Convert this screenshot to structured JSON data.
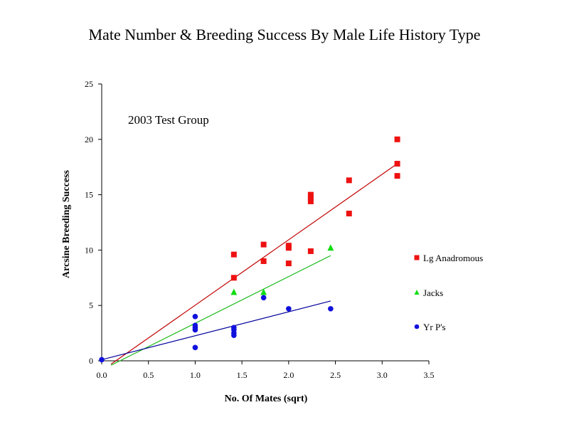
{
  "chart_data": {
    "type": "scatter",
    "title": "Mate Number & Breeding Success By Male Life History Type",
    "xlabel": "No. Of Mates (sqrt)",
    "ylabel": "Arcsine Breeding Success",
    "annotation": "2003 Test Group",
    "xlim": [
      0,
      3.5
    ],
    "ylim": [
      0,
      25
    ],
    "xticks": [
      "0.0",
      "0.5",
      "1.0",
      "1.5",
      "2.0",
      "2.5",
      "3.0",
      "3.5"
    ],
    "yticks": [
      "0",
      "5",
      "10",
      "15",
      "20",
      "25"
    ],
    "grid": false,
    "legend_position": "right",
    "series": [
      {
        "name": "Lg Anadromous",
        "marker": "square",
        "color": "#ee1111",
        "line_color": "#c00000",
        "points": [
          [
            1.414,
            7.5
          ],
          [
            1.414,
            9.6
          ],
          [
            1.732,
            9.0
          ],
          [
            1.732,
            10.5
          ],
          [
            2.0,
            8.8
          ],
          [
            2.0,
            10.2
          ],
          [
            2.0,
            10.4
          ],
          [
            2.236,
            9.9
          ],
          [
            2.236,
            14.4
          ],
          [
            2.236,
            14.7
          ],
          [
            2.236,
            15.0
          ],
          [
            2.646,
            13.3
          ],
          [
            2.646,
            16.3
          ],
          [
            3.162,
            16.7
          ],
          [
            3.162,
            17.8
          ],
          [
            3.162,
            20.0
          ]
        ],
        "trend": [
          [
            0.1,
            -0.3
          ],
          [
            3.162,
            17.8
          ]
        ]
      },
      {
        "name": "Jacks",
        "marker": "triangle",
        "color": "#11dd11",
        "line_color": "#22bb22",
        "points": [
          [
            1.414,
            6.2
          ],
          [
            1.732,
            6.2
          ],
          [
            2.449,
            10.2
          ]
        ],
        "trend": [
          [
            0.1,
            -0.4
          ],
          [
            2.449,
            9.5
          ]
        ]
      },
      {
        "name": "Yr P's",
        "marker": "circle",
        "color": "#1111dd",
        "line_color": "#000099",
        "points": [
          [
            0,
            0.1
          ],
          [
            1.0,
            1.2
          ],
          [
            1.0,
            2.8
          ],
          [
            1.0,
            3.0
          ],
          [
            1.0,
            3.2
          ],
          [
            1.0,
            4.0
          ],
          [
            1.414,
            2.3
          ],
          [
            1.414,
            2.5
          ],
          [
            1.414,
            2.8
          ],
          [
            1.414,
            3.0
          ],
          [
            1.732,
            5.7
          ],
          [
            2.0,
            4.7
          ],
          [
            2.449,
            4.7
          ]
        ],
        "trend": [
          [
            0,
            0.1
          ],
          [
            2.449,
            5.4
          ]
        ]
      }
    ]
  }
}
